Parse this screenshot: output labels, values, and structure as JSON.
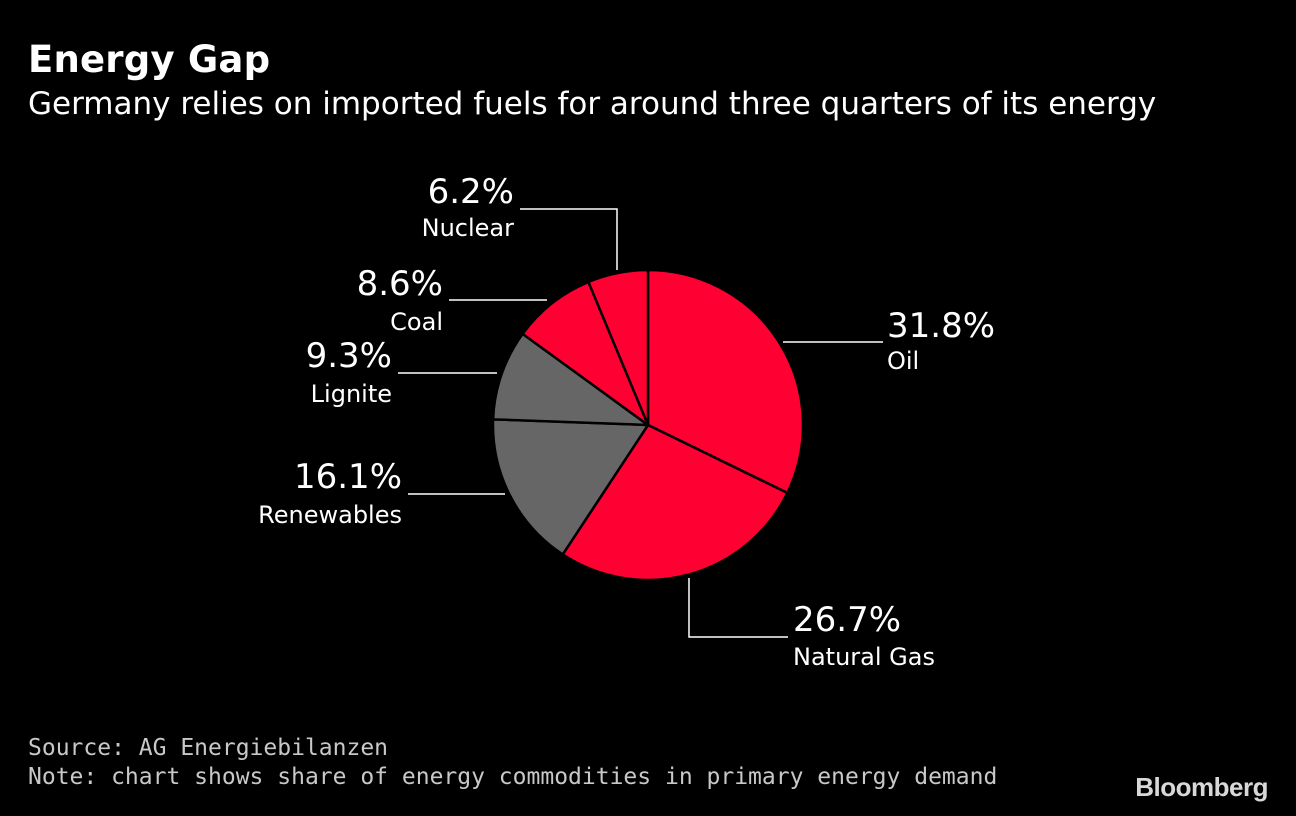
{
  "header": {
    "title": "Energy Gap",
    "subtitle": "Germany relies on imported fuels for around three quarters of its energy"
  },
  "footer": {
    "source": "Source: AG Energiebilanzen",
    "note": "Note: chart shows share of energy commodities in primary energy demand",
    "logo": "Bloomberg"
  },
  "chart_data": {
    "type": "pie",
    "title": "Energy Gap",
    "subtitle": "Germany relies on imported fuels for around three quarters of its energy",
    "slices": [
      {
        "label": "Oil",
        "value": 31.8,
        "display": "31.8%",
        "color": "#ff0033"
      },
      {
        "label": "Natural Gas",
        "value": 26.7,
        "display": "26.7%",
        "color": "#ff0033"
      },
      {
        "label": "Renewables",
        "value": 16.1,
        "display": "16.1%",
        "color": "#666666"
      },
      {
        "label": "Lignite",
        "value": 9.3,
        "display": "9.3%",
        "color": "#666666"
      },
      {
        "label": "Coal",
        "value": 8.6,
        "display": "8.6%",
        "color": "#ff0033"
      },
      {
        "label": "Nuclear",
        "value": 6.2,
        "display": "6.2%",
        "color": "#ff0033"
      }
    ],
    "start_angle_deg": 0,
    "direction": "clockwise",
    "border_color": "#000000"
  }
}
